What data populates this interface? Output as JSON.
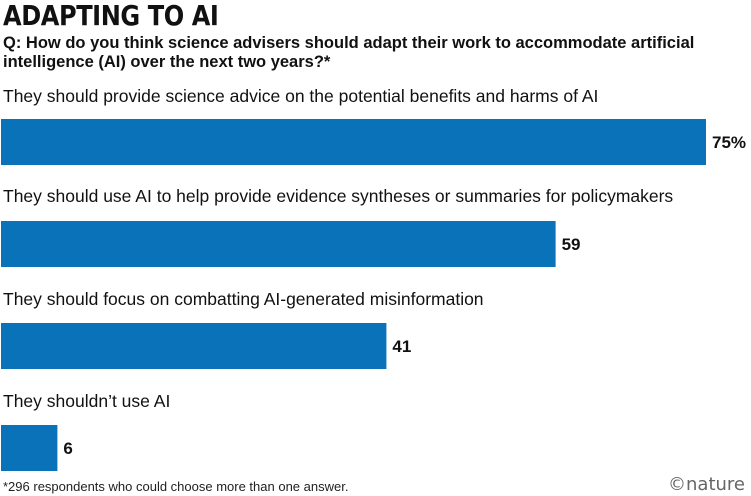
{
  "header": {
    "title": "ADAPTING TO AI",
    "question": "Q: How do you think science advisers should adapt their work to accommodate artificial intelligence (AI) over the next two years?*"
  },
  "chart_data": {
    "type": "bar",
    "orientation": "horizontal",
    "categories": [
      "They should provide science advice on the potential benefits and harms of AI",
      "They should use AI to help provide evidence syntheses or summaries for policymakers",
      "They should focus on combatting AI-generated misinformation",
      "They shouldn’t use AI"
    ],
    "values": [
      75,
      59,
      41,
      6
    ],
    "value_labels": [
      "75%",
      "59",
      "41",
      "6"
    ],
    "bar_color": "#0a72b8",
    "xlim": [
      0,
      75
    ],
    "grid": false
  },
  "footnote": "*296 respondents who could choose more than one answer.",
  "brand": "©nature"
}
